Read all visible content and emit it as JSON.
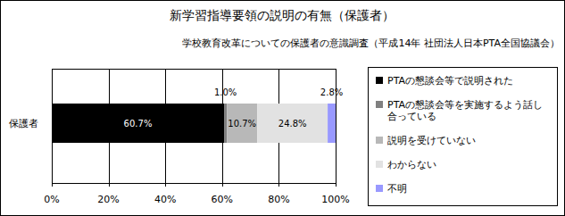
{
  "chart_data": {
    "type": "bar",
    "title": "新学習指導要領の説明の有無（保護者）",
    "subtitle": "学校教育改革についての保護者の意識調査（平成14年 社団法人日本PTA全国協議会）",
    "orientation": "horizontal",
    "stacked": true,
    "data_labels": true,
    "grid": true,
    "legend": "right",
    "categories": [
      "保護者"
    ],
    "series": [
      {
        "name": "PTAの懇談会等で説明された",
        "color": "#000000",
        "values": [
          60.7
        ],
        "value_labels": [
          "60.7%"
        ]
      },
      {
        "name": "PTAの懇談会等を実施するよう話し合っている",
        "color": "#808080",
        "values": [
          1.0
        ],
        "value_labels": [
          "1.0%"
        ]
      },
      {
        "name": "説明を受けていない",
        "color": "#b8b8b8",
        "values": [
          10.7
        ],
        "value_labels": [
          "10.7%"
        ]
      },
      {
        "name": "わからない",
        "color": "#e2e2e2",
        "values": [
          24.8
        ],
        "value_labels": [
          "24.8%"
        ]
      },
      {
        "name": "不明",
        "color": "#9999ff",
        "values": [
          2.8
        ],
        "value_labels": [
          "2.8%"
        ]
      }
    ],
    "xlim": [
      0,
      100
    ],
    "xticks": [
      {
        "value": 0,
        "label": "0%"
      },
      {
        "value": 20,
        "label": "20%"
      },
      {
        "value": 40,
        "label": "40%"
      },
      {
        "value": 60,
        "label": "60%"
      },
      {
        "value": 80,
        "label": "80%"
      },
      {
        "value": 100,
        "label": "100%"
      }
    ]
  }
}
